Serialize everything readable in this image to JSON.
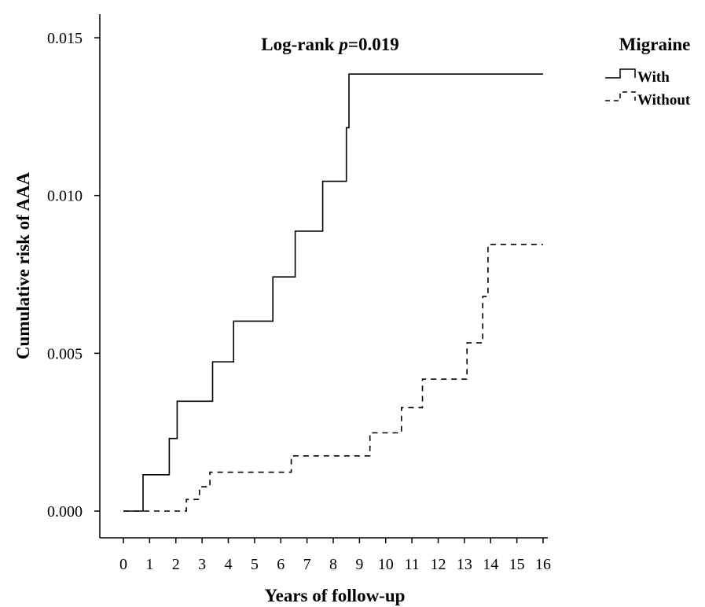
{
  "chart_data": {
    "type": "line",
    "title": "",
    "annotation": {
      "prefix": "Log-rank ",
      "italic": "p",
      "suffix": "=0.019"
    },
    "xlabel": "Years of follow-up",
    "ylabel": "Cumulative risk of AAA",
    "xlim": [
      -0.8,
      16.5
    ],
    "ylim": [
      -0.00085,
      0.0158
    ],
    "x_ticks": [
      0,
      1,
      2,
      3,
      4,
      5,
      6,
      7,
      8,
      9,
      10,
      11,
      12,
      13,
      14,
      15,
      16
    ],
    "y_ticks": [
      0.0,
      0.005,
      0.01,
      0.015
    ],
    "y_tick_labels": [
      "0.000",
      "0.005",
      "0.010",
      "0.015"
    ],
    "grid": false,
    "step": true,
    "legend": {
      "title": "Migraine",
      "placement": "top-right outside"
    },
    "series": [
      {
        "name": "With",
        "style": "solid",
        "color": "#000000",
        "x": [
          0,
          0.75,
          1.75,
          2.05,
          3.4,
          4.2,
          5.7,
          6.55,
          7.6,
          8.5,
          8.6,
          16
        ],
        "y": [
          0,
          0.00115,
          0.0023,
          0.00348,
          0.00473,
          0.00602,
          0.00742,
          0.00887,
          0.01045,
          0.01215,
          0.01385,
          0.01385
        ]
      },
      {
        "name": "Without",
        "style": "dashed",
        "color": "#000000",
        "x": [
          0,
          2.4,
          2.9,
          3.3,
          6.4,
          9.4,
          10.6,
          11.4,
          13.1,
          13.7,
          13.9,
          16
        ],
        "y": [
          0,
          0.00037,
          0.00077,
          0.00123,
          0.00175,
          0.00248,
          0.00328,
          0.00418,
          0.00533,
          0.0068,
          0.00845,
          0.00845
        ]
      }
    ]
  }
}
